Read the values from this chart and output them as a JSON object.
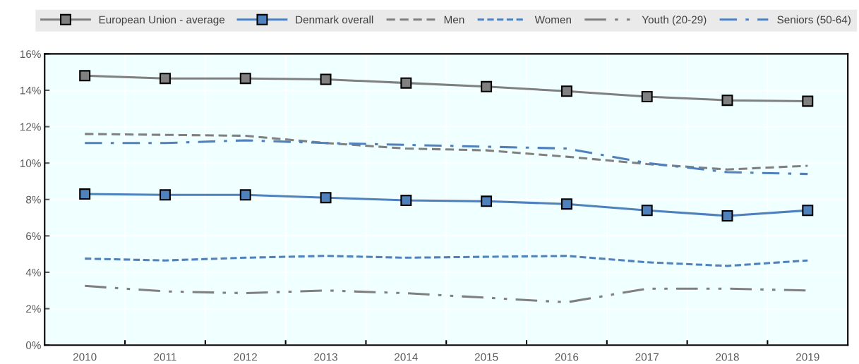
{
  "chart_data": {
    "type": "line",
    "categories": [
      "2010",
      "2011",
      "2012",
      "2013",
      "2014",
      "2015",
      "2016",
      "2017",
      "2018",
      "2019"
    ],
    "ylim": [
      0,
      16
    ],
    "yticks": [
      {
        "value": 0,
        "label": "0%"
      },
      {
        "value": 2,
        "label": "2%"
      },
      {
        "value": 4,
        "label": "4%"
      },
      {
        "value": 6,
        "label": "6%"
      },
      {
        "value": 8,
        "label": "8%"
      },
      {
        "value": 10,
        "label": "10%"
      },
      {
        "value": 12,
        "label": "12%"
      },
      {
        "value": 14,
        "label": "14%"
      },
      {
        "value": 16,
        "label": "16%"
      }
    ],
    "grid": true,
    "legend": "top",
    "series": [
      {
        "name": "European Union - average",
        "color": "#808080",
        "line_style": "solid",
        "marker": "square",
        "values": [
          14.8,
          14.65,
          14.65,
          14.6,
          14.4,
          14.2,
          13.95,
          13.65,
          13.45,
          13.4
        ]
      },
      {
        "name": "Denmark overall",
        "color": "#4f81bd",
        "line_style": "solid",
        "marker": "square",
        "values": [
          8.3,
          8.25,
          8.25,
          8.1,
          7.95,
          7.9,
          7.75,
          7.4,
          7.1,
          7.4
        ]
      },
      {
        "name": "Men",
        "color": "#808080",
        "line_style": "dashed",
        "values": [
          11.6,
          11.55,
          11.5,
          11.1,
          10.8,
          10.7,
          10.35,
          9.95,
          9.65,
          9.85
        ]
      },
      {
        "name": "Women",
        "color": "#4f81bd",
        "line_style": "dotted",
        "values": [
          4.75,
          4.65,
          4.8,
          4.9,
          4.8,
          4.85,
          4.9,
          4.55,
          4.35,
          4.65
        ]
      },
      {
        "name": "Youth (20-29)",
        "color": "#808080",
        "line_style": "dashdotdot",
        "values": [
          3.25,
          2.95,
          2.85,
          3.0,
          2.85,
          2.6,
          2.35,
          3.1,
          3.1,
          3.0
        ]
      },
      {
        "name": "Seniors (50-64)",
        "color": "#4f81bd",
        "line_style": "dashdot",
        "values": [
          11.1,
          11.1,
          11.25,
          11.1,
          11.0,
          10.9,
          10.8,
          10.0,
          9.5,
          9.4
        ]
      }
    ]
  }
}
